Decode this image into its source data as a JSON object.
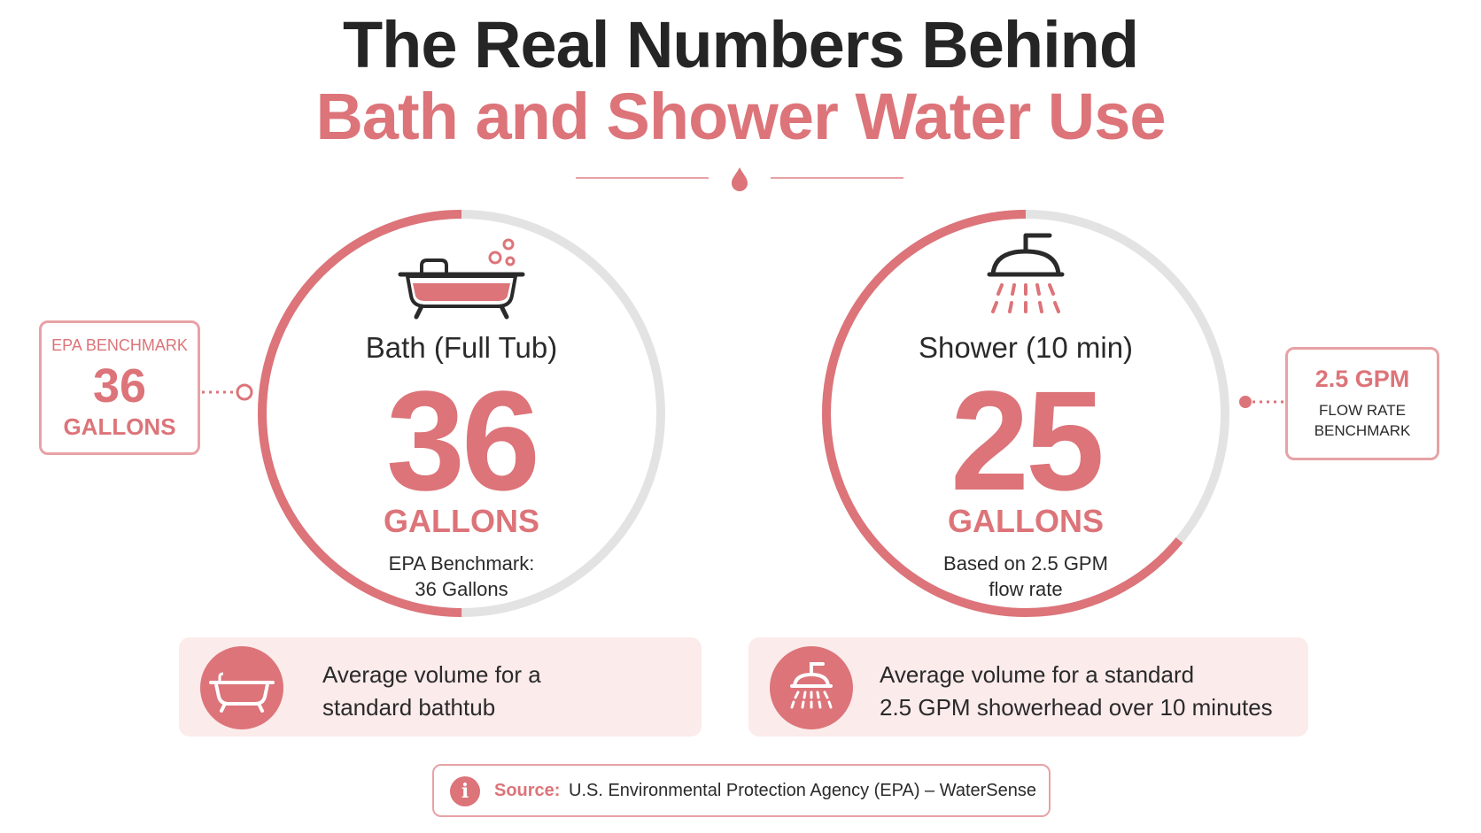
{
  "title": {
    "line1": "The Real Numbers Behind",
    "line2": "Bath and Shower Water Use"
  },
  "colors": {
    "accent": "#dc7479",
    "accent_light": "#fcebeb",
    "track": "#e3e3e3",
    "text": "#2a2a2a"
  },
  "bath": {
    "label": "Bath (Full Tub)",
    "value": "36",
    "unit": "GALLONS",
    "note_line1": "EPA Benchmark:",
    "note_line2": "36 Gallons",
    "progress": 0.5,
    "icon": "bathtub-icon"
  },
  "shower": {
    "label": "Shower (10 min)",
    "value": "25",
    "unit": "GALLONS",
    "note_line1": "Based on 2.5 GPM",
    "note_line2": "flow rate",
    "progress": 0.64,
    "icon": "showerhead-icon"
  },
  "callout_left": {
    "top": "EPA BENCHMARK",
    "value": "36",
    "unit": "GALLONS"
  },
  "callout_right": {
    "value": "2.5 GPM",
    "line1": "FLOW RATE",
    "line2": "BENCHMARK"
  },
  "cards": {
    "bath": {
      "line1": "Average volume for a",
      "line2": "standard bathtub",
      "icon": "bathtub-icon"
    },
    "shower": {
      "line1": "Average volume for a standard",
      "line2": "2.5 GPM showerhead over 10 minutes",
      "icon": "showerhead-icon"
    }
  },
  "source": {
    "label": "Source:",
    "text": "U.S. Environmental Protection Agency (EPA) – WaterSense",
    "icon": "info-icon"
  }
}
